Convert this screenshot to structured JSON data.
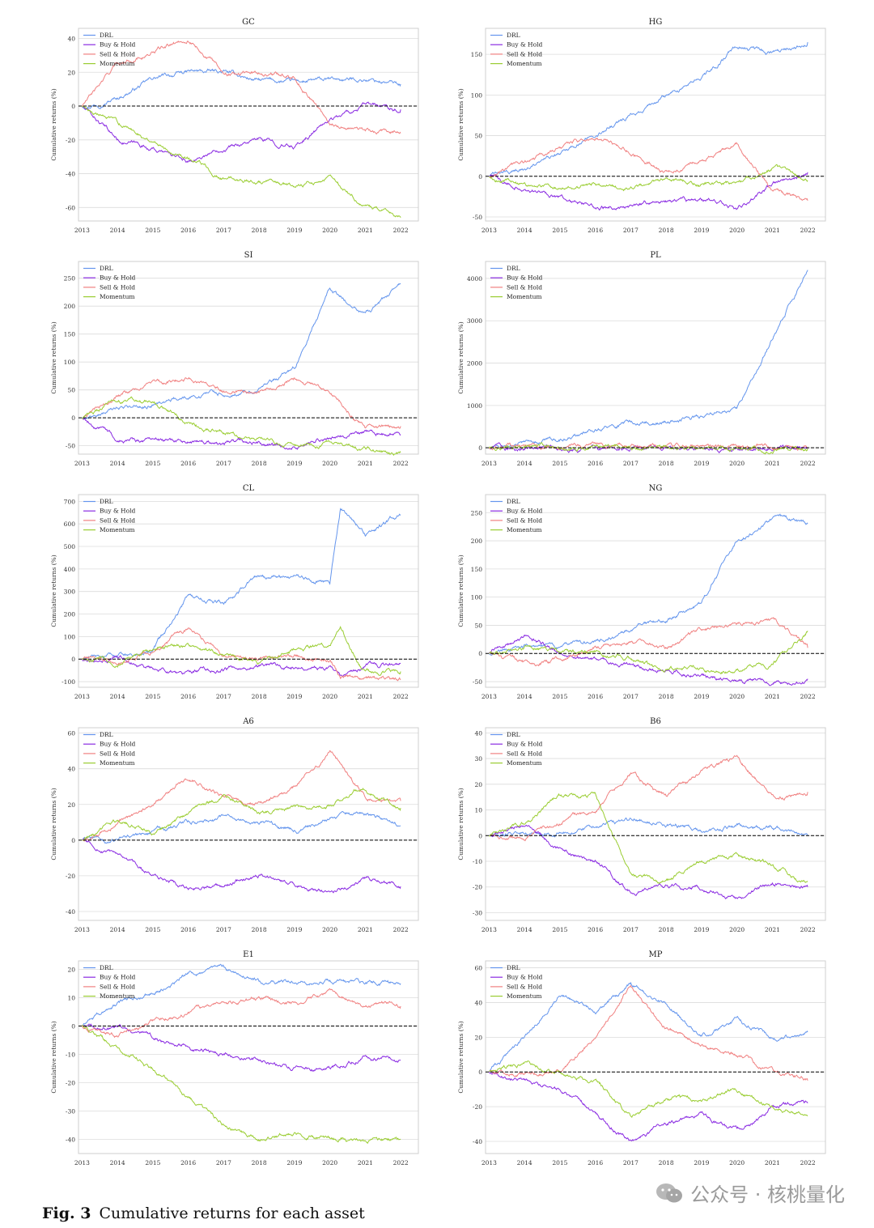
{
  "figure": {
    "label": "Fig. 3",
    "caption": "Cumulative returns for each asset",
    "watermark": "公众号 · 核桃量化",
    "ylabel": "Cumulative returns (%)",
    "legend": [
      "DRL",
      "Buy & Hold",
      "Sell & Hold",
      "Momentum"
    ],
    "colors": {
      "DRL": "#6495ED",
      "Buy & Hold": "#8A2BE2",
      "Sell & Hold": "#F08080",
      "Momentum": "#9ACD32"
    },
    "x_ticks": [
      "2013",
      "2014",
      "2015",
      "2016",
      "2017",
      "2018",
      "2019",
      "2020",
      "2021",
      "2022"
    ]
  },
  "chart_data": [
    {
      "type": "line",
      "title": "GC",
      "ylim": [
        -68,
        46
      ],
      "yticks": [
        -60,
        -40,
        -20,
        0,
        20,
        40
      ],
      "x": [
        2013,
        2014,
        2015,
        2016,
        2017,
        2018,
        2019,
        2020,
        2021,
        2022
      ],
      "series": [
        {
          "name": "DRL",
          "values": [
            0,
            5,
            16,
            20,
            20,
            15,
            14,
            15,
            16,
            13
          ]
        },
        {
          "name": "Buy & Hold",
          "values": [
            0,
            -20,
            -25,
            -33,
            -24,
            -20,
            -24,
            -8,
            0,
            -2
          ]
        },
        {
          "name": "Sell & Hold",
          "values": [
            0,
            25,
            32,
            40,
            20,
            20,
            18,
            -10,
            -15,
            -16
          ]
        },
        {
          "name": "Momentum",
          "values": [
            0,
            -10,
            -20,
            -30,
            -42,
            -45,
            -48,
            -42,
            -60,
            -66
          ]
        }
      ]
    },
    {
      "type": "line",
      "title": "HG",
      "ylim": [
        -55,
        182
      ],
      "yticks": [
        -50,
        0,
        50,
        100,
        150
      ],
      "x": [
        2013,
        2014,
        2015,
        2016,
        2017,
        2018,
        2019,
        2020,
        2021,
        2022
      ],
      "series": [
        {
          "name": "DRL",
          "values": [
            0,
            10,
            25,
            55,
            75,
            100,
            120,
            160,
            150,
            165
          ]
        },
        {
          "name": "Buy & Hold",
          "values": [
            0,
            -15,
            -25,
            -40,
            -35,
            -30,
            -30,
            -40,
            -10,
            5
          ]
        },
        {
          "name": "Sell & Hold",
          "values": [
            0,
            15,
            35,
            50,
            30,
            5,
            20,
            40,
            -20,
            -30
          ]
        },
        {
          "name": "Momentum",
          "values": [
            0,
            -10,
            -15,
            -10,
            -15,
            -5,
            -10,
            -10,
            10,
            -5
          ]
        }
      ]
    },
    {
      "type": "line",
      "title": "SI",
      "ylim": [
        -65,
        280
      ],
      "yticks": [
        -50,
        0,
        50,
        100,
        150,
        200,
        250
      ],
      "x": [
        2013,
        2014,
        2015,
        2016,
        2017,
        2018,
        2019,
        2020,
        2021,
        2022
      ],
      "series": [
        {
          "name": "DRL",
          "values": [
            0,
            15,
            25,
            40,
            45,
            50,
            90,
            230,
            180,
            240
          ]
        },
        {
          "name": "Buy & Hold",
          "values": [
            0,
            -35,
            -45,
            -45,
            -45,
            -45,
            -50,
            -35,
            -25,
            -30
          ]
        },
        {
          "name": "Sell & Hold",
          "values": [
            0,
            40,
            60,
            70,
            50,
            45,
            70,
            50,
            -20,
            -15
          ]
        },
        {
          "name": "Momentum",
          "values": [
            0,
            30,
            30,
            -10,
            -25,
            -40,
            -50,
            -45,
            -55,
            -62
          ]
        }
      ]
    },
    {
      "type": "line",
      "title": "PL",
      "ylim": [
        -150,
        4400
      ],
      "yticks": [
        0,
        1000,
        2000,
        3000,
        4000
      ],
      "x": [
        2013,
        2014,
        2015,
        2016,
        2017,
        2018,
        2019,
        2020,
        2021,
        2022
      ],
      "series": [
        {
          "name": "DRL",
          "values": [
            0,
            100,
            200,
            450,
            550,
            650,
            750,
            950,
            2600,
            4200
          ]
        },
        {
          "name": "Buy & Hold",
          "values": [
            0,
            -10,
            -20,
            -30,
            -20,
            -10,
            -20,
            -30,
            -20,
            -10
          ]
        },
        {
          "name": "Sell & Hold",
          "values": [
            0,
            20,
            30,
            40,
            30,
            30,
            40,
            40,
            20,
            10
          ]
        },
        {
          "name": "Momentum",
          "values": [
            0,
            10,
            0,
            -10,
            -10,
            -20,
            -20,
            -30,
            -30,
            -20
          ]
        }
      ]
    },
    {
      "type": "line",
      "title": "CL",
      "ylim": [
        -125,
        730
      ],
      "yticks": [
        -100,
        0,
        100,
        200,
        300,
        400,
        500,
        600,
        700
      ],
      "x": [
        2013,
        2014,
        2015,
        2016,
        2017,
        2018,
        2019,
        2020,
        2020.3,
        2021,
        2022
      ],
      "series": [
        {
          "name": "DRL",
          "values": [
            0,
            15,
            35,
            280,
            250,
            370,
            360,
            340,
            680,
            550,
            640
          ]
        },
        {
          "name": "Buy & Hold",
          "values": [
            0,
            10,
            -40,
            -60,
            -45,
            -25,
            -40,
            -40,
            -80,
            -40,
            -20
          ]
        },
        {
          "name": "Sell & Hold",
          "values": [
            0,
            -10,
            40,
            130,
            20,
            -10,
            20,
            -10,
            -80,
            -90,
            -92
          ]
        },
        {
          "name": "Momentum",
          "values": [
            0,
            -20,
            50,
            60,
            10,
            -10,
            50,
            60,
            150,
            -60,
            -55
          ]
        }
      ]
    },
    {
      "type": "line",
      "title": "NG",
      "ylim": [
        -60,
        282
      ],
      "yticks": [
        -50,
        0,
        50,
        100,
        150,
        200,
        250
      ],
      "x": [
        2013,
        2014,
        2015,
        2016,
        2017,
        2018,
        2019,
        2020,
        2021,
        2022
      ],
      "series": [
        {
          "name": "DRL",
          "values": [
            0,
            15,
            10,
            20,
            40,
            60,
            90,
            200,
            240,
            230
          ]
        },
        {
          "name": "Buy & Hold",
          "values": [
            0,
            30,
            0,
            -10,
            -20,
            -30,
            -40,
            -50,
            -50,
            -45
          ]
        },
        {
          "name": "Sell & Hold",
          "values": [
            0,
            -20,
            -10,
            10,
            20,
            10,
            40,
            50,
            60,
            10
          ]
        },
        {
          "name": "Momentum",
          "values": [
            0,
            10,
            0,
            0,
            -10,
            -30,
            -30,
            -30,
            -20,
            40
          ]
        }
      ]
    },
    {
      "type": "line",
      "title": "A6",
      "ylim": [
        -45,
        63
      ],
      "yticks": [
        -40,
        -20,
        0,
        20,
        40,
        60
      ],
      "x": [
        2013,
        2014,
        2015,
        2016,
        2017,
        2018,
        2019,
        2020,
        2021,
        2022
      ],
      "series": [
        {
          "name": "DRL",
          "values": [
            0,
            0,
            5,
            10,
            12,
            10,
            5,
            12,
            15,
            8
          ]
        },
        {
          "name": "Buy & Hold",
          "values": [
            0,
            -10,
            -20,
            -28,
            -25,
            -20,
            -25,
            -30,
            -22,
            -26
          ]
        },
        {
          "name": "Sell & Hold",
          "values": [
            0,
            10,
            20,
            35,
            25,
            20,
            30,
            50,
            25,
            22
          ]
        },
        {
          "name": "Momentum",
          "values": [
            0,
            10,
            5,
            15,
            25,
            15,
            18,
            20,
            30,
            18
          ]
        }
      ]
    },
    {
      "type": "line",
      "title": "B6",
      "ylim": [
        -33,
        42
      ],
      "yticks": [
        -30,
        -20,
        -10,
        0,
        10,
        20,
        30,
        40
      ],
      "x": [
        2013,
        2014,
        2015,
        2016,
        2017,
        2018,
        2019,
        2020,
        2021,
        2022
      ],
      "series": [
        {
          "name": "DRL",
          "values": [
            0,
            2,
            1,
            3,
            6,
            5,
            2,
            4,
            3,
            0
          ]
        },
        {
          "name": "Buy & Hold",
          "values": [
            0,
            5,
            -5,
            -10,
            -22,
            -20,
            -20,
            -25,
            -18,
            -20
          ]
        },
        {
          "name": "Sell & Hold",
          "values": [
            0,
            0,
            5,
            10,
            25,
            15,
            25,
            30,
            15,
            17
          ]
        },
        {
          "name": "Momentum",
          "values": [
            0,
            5,
            15,
            15,
            -15,
            -18,
            -10,
            -8,
            -12,
            -18
          ]
        }
      ]
    },
    {
      "type": "line",
      "title": "E1",
      "ylim": [
        -45,
        23
      ],
      "yticks": [
        -40,
        -30,
        -20,
        -10,
        0,
        10,
        20
      ],
      "x": [
        2013,
        2014,
        2015,
        2016,
        2017,
        2018,
        2019,
        2020,
        2021,
        2022
      ],
      "series": [
        {
          "name": "DRL",
          "values": [
            0,
            8,
            12,
            18,
            20,
            16,
            15,
            16,
            15,
            15
          ]
        },
        {
          "name": "Buy & Hold",
          "values": [
            0,
            0,
            -5,
            -8,
            -10,
            -12,
            -15,
            -15,
            -10,
            -12
          ]
        },
        {
          "name": "Sell & Hold",
          "values": [
            0,
            -3,
            2,
            5,
            8,
            10,
            8,
            12,
            8,
            7
          ]
        },
        {
          "name": "Momentum",
          "values": [
            0,
            -8,
            -15,
            -25,
            -35,
            -40,
            -38,
            -40,
            -40,
            -40
          ]
        }
      ]
    },
    {
      "type": "line",
      "title": "MP",
      "ylim": [
        -47,
        64
      ],
      "yticks": [
        -40,
        -20,
        0,
        20,
        40,
        60
      ],
      "x": [
        2013,
        2014,
        2015,
        2016,
        2017,
        2018,
        2019,
        2020,
        2021,
        2022
      ],
      "series": [
        {
          "name": "DRL",
          "values": [
            0,
            20,
            45,
            35,
            50,
            40,
            20,
            30,
            20,
            23
          ]
        },
        {
          "name": "Buy & Hold",
          "values": [
            0,
            -5,
            -10,
            -25,
            -40,
            -30,
            -25,
            -35,
            -20,
            -18
          ]
        },
        {
          "name": "Sell & Hold",
          "values": [
            0,
            0,
            0,
            20,
            50,
            25,
            15,
            10,
            0,
            -5
          ]
        },
        {
          "name": "Momentum",
          "values": [
            0,
            5,
            0,
            -5,
            -25,
            -15,
            -15,
            -10,
            -20,
            -25
          ]
        }
      ]
    }
  ]
}
